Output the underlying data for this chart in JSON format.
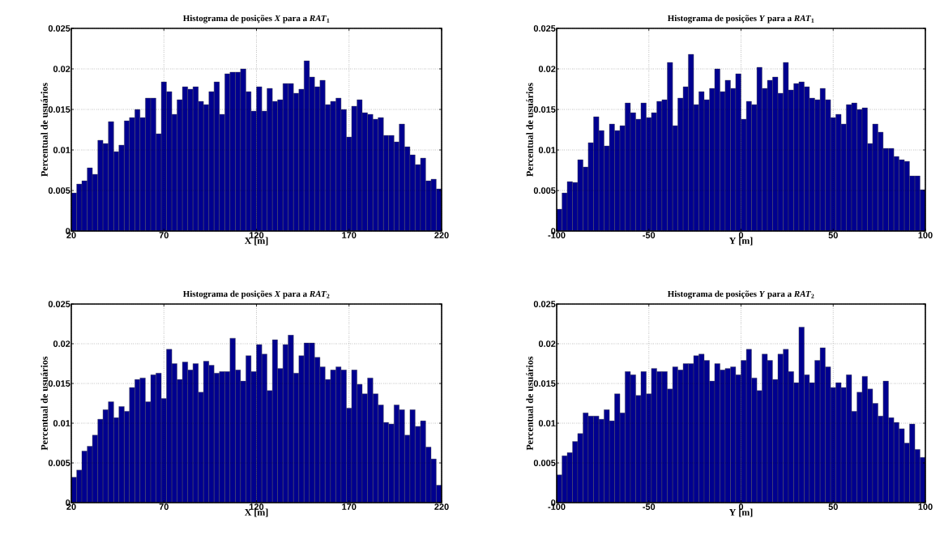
{
  "chart_data": [
    {
      "type": "histogram",
      "title": "Histograma de posições *X* para a *RAT*$_{1}$",
      "xlabel": "X [m]",
      "ylabel": "Percentual de usuários",
      "color": "#00008f",
      "grid": true,
      "xlim": [
        20,
        220
      ],
      "ylim": [
        0,
        0.025
      ],
      "xticks": [
        20,
        70,
        120,
        170,
        220
      ],
      "yticks": [
        0,
        0.005,
        0.01,
        0.015,
        0.02,
        0.025
      ],
      "bins": [
        20,
        22.9,
        25.7,
        28.6,
        31.4,
        34.3,
        37.1,
        40,
        42.9,
        45.7,
        48.6,
        51.4,
        54.3,
        57.1,
        60,
        62.9,
        65.7,
        68.6,
        71.4,
        74.3,
        77.1,
        80,
        82.9,
        85.7,
        88.6,
        91.4,
        94.3,
        97.1,
        100,
        102.9,
        105.7,
        108.6,
        111.4,
        114.3,
        117.1,
        120,
        122.9,
        125.7,
        128.6,
        131.4,
        134.3,
        137.1,
        140,
        142.9,
        145.7,
        148.6,
        151.4,
        154.3,
        157.1,
        160,
        162.9,
        165.7,
        168.6,
        171.4,
        174.3,
        177.1,
        180,
        182.9,
        185.7,
        188.6,
        191.4,
        194.3,
        197.1,
        200,
        202.9,
        205.7,
        208.6,
        211.4,
        214.3,
        217.1,
        220
      ],
      "values": [
        0.0047,
        0.0058,
        0.0062,
        0.0078,
        0.007,
        0.0112,
        0.0108,
        0.0135,
        0.0098,
        0.0106,
        0.0136,
        0.014,
        0.015,
        0.014,
        0.0164,
        0.0164,
        0.012,
        0.0184,
        0.0172,
        0.0144,
        0.0162,
        0.0178,
        0.0175,
        0.0178,
        0.016,
        0.0156,
        0.0172,
        0.0184,
        0.0144,
        0.0194,
        0.0196,
        0.0196,
        0.02,
        0.0172,
        0.0148,
        0.0178,
        0.0148,
        0.0176,
        0.016,
        0.0162,
        0.0182,
        0.0182,
        0.017,
        0.0175,
        0.021,
        0.019,
        0.0178,
        0.0186,
        0.0156,
        0.016,
        0.0164,
        0.015,
        0.0116,
        0.0154,
        0.0162,
        0.0146,
        0.0144,
        0.0138,
        0.014,
        0.0118,
        0.0118,
        0.011,
        0.0132,
        0.0104,
        0.0094,
        0.0082,
        0.009,
        0.0062,
        0.0064,
        0.0052
      ]
    },
    {
      "type": "histogram",
      "title": "Histograma de posições *Y* para a *RAT*$_{1}$",
      "xlabel": "Y [m]",
      "ylabel": "Percentual de usuários",
      "color": "#00008f",
      "grid": true,
      "xlim": [
        -100,
        100
      ],
      "ylim": [
        0,
        0.025
      ],
      "xticks": [
        -100,
        -50,
        0,
        50,
        100
      ],
      "yticks": [
        0,
        0.005,
        0.01,
        0.015,
        0.02,
        0.025
      ],
      "bins": [
        -100,
        -97.1,
        -94.3,
        -91.4,
        -88.6,
        -85.7,
        -82.9,
        -80,
        -77.1,
        -74.3,
        -71.4,
        -68.6,
        -65.7,
        -62.9,
        -60,
        -57.1,
        -54.3,
        -51.4,
        -48.6,
        -45.7,
        -42.9,
        -40,
        -37.1,
        -34.3,
        -31.4,
        -28.6,
        -25.7,
        -22.9,
        -20,
        -17.1,
        -14.3,
        -11.4,
        -8.6,
        -5.7,
        -2.9,
        0,
        2.9,
        5.7,
        8.6,
        11.4,
        14.3,
        17.1,
        20,
        22.9,
        25.7,
        28.6,
        31.4,
        34.3,
        37.1,
        40,
        42.9,
        45.7,
        48.6,
        51.4,
        54.3,
        57.1,
        60,
        62.9,
        65.7,
        68.6,
        71.4,
        74.3,
        77.1,
        80,
        82.9,
        85.7,
        88.6,
        91.4,
        94.3,
        97.1,
        100
      ],
      "values": [
        0.0027,
        0.0047,
        0.0061,
        0.006,
        0.0088,
        0.0079,
        0.0109,
        0.0141,
        0.0124,
        0.0105,
        0.0132,
        0.0124,
        0.013,
        0.0158,
        0.0146,
        0.0138,
        0.0158,
        0.014,
        0.0146,
        0.016,
        0.0162,
        0.0208,
        0.013,
        0.0164,
        0.0178,
        0.0218,
        0.0156,
        0.0172,
        0.0162,
        0.0176,
        0.02,
        0.0172,
        0.0186,
        0.0176,
        0.0194,
        0.0138,
        0.016,
        0.0156,
        0.0202,
        0.0176,
        0.0186,
        0.019,
        0.017,
        0.0208,
        0.0174,
        0.0182,
        0.0184,
        0.0178,
        0.0164,
        0.0162,
        0.0176,
        0.0162,
        0.014,
        0.0144,
        0.0132,
        0.0156,
        0.0158,
        0.015,
        0.0152,
        0.0108,
        0.0132,
        0.0122,
        0.0102,
        0.0102,
        0.0092,
        0.0088,
        0.0086,
        0.0068,
        0.0068,
        0.0051
      ]
    },
    {
      "type": "histogram",
      "title": "Histograma de posições *X* para a *RAT*$_{2}$",
      "xlabel": "X [m]",
      "ylabel": "Percentual de usuários",
      "color": "#00008f",
      "grid": true,
      "xlim": [
        20,
        220
      ],
      "ylim": [
        0,
        0.025
      ],
      "xticks": [
        20,
        70,
        120,
        170,
        220
      ],
      "yticks": [
        0,
        0.005,
        0.01,
        0.015,
        0.02,
        0.025
      ],
      "bins": [
        20,
        22.9,
        25.7,
        28.6,
        31.4,
        34.3,
        37.1,
        40,
        42.9,
        45.7,
        48.6,
        51.4,
        54.3,
        57.1,
        60,
        62.9,
        65.7,
        68.6,
        71.4,
        74.3,
        77.1,
        80,
        82.9,
        85.7,
        88.6,
        91.4,
        94.3,
        97.1,
        100,
        102.9,
        105.7,
        108.6,
        111.4,
        114.3,
        117.1,
        120,
        122.9,
        125.7,
        128.6,
        131.4,
        134.3,
        137.1,
        140,
        142.9,
        145.7,
        148.6,
        151.4,
        154.3,
        157.1,
        160,
        162.9,
        165.7,
        168.6,
        171.4,
        174.3,
        177.1,
        180,
        182.9,
        185.7,
        188.6,
        191.4,
        194.3,
        197.1,
        200,
        202.9,
        205.7,
        208.6,
        211.4,
        214.3,
        217.1,
        220
      ],
      "values": [
        0.0032,
        0.0041,
        0.0065,
        0.0071,
        0.0085,
        0.0105,
        0.0117,
        0.0127,
        0.0107,
        0.0121,
        0.0115,
        0.0145,
        0.0155,
        0.0157,
        0.0127,
        0.0161,
        0.0163,
        0.0131,
        0.0193,
        0.0175,
        0.0155,
        0.0177,
        0.0167,
        0.0175,
        0.0139,
        0.0178,
        0.0173,
        0.0163,
        0.0165,
        0.0165,
        0.0207,
        0.0167,
        0.0153,
        0.0185,
        0.0165,
        0.0199,
        0.0187,
        0.0141,
        0.0205,
        0.0169,
        0.0199,
        0.0211,
        0.0163,
        0.0185,
        0.0201,
        0.0201,
        0.0183,
        0.0171,
        0.0155,
        0.0167,
        0.0171,
        0.0167,
        0.0119,
        0.0167,
        0.0149,
        0.0137,
        0.0157,
        0.0137,
        0.0123,
        0.0101,
        0.0099,
        0.0123,
        0.0117,
        0.0085,
        0.0117,
        0.0096,
        0.0103,
        0.007,
        0.0055,
        0.0022
      ]
    },
    {
      "type": "histogram",
      "title": "Histograma de posições *Y* para a *RAT*$_{2}$",
      "xlabel": "Y [m]",
      "ylabel": "Percentual de usuários",
      "color": "#00008f",
      "grid": true,
      "xlim": [
        -100,
        100
      ],
      "ylim": [
        0,
        0.025
      ],
      "xticks": [
        -100,
        -50,
        0,
        50,
        100
      ],
      "yticks": [
        0,
        0.005,
        0.01,
        0.015,
        0.02,
        0.025
      ],
      "bins": [
        -100,
        -97.1,
        -94.3,
        -91.4,
        -88.6,
        -85.7,
        -82.9,
        -80,
        -77.1,
        -74.3,
        -71.4,
        -68.6,
        -65.7,
        -62.9,
        -60,
        -57.1,
        -54.3,
        -51.4,
        -48.6,
        -45.7,
        -42.9,
        -40,
        -37.1,
        -34.3,
        -31.4,
        -28.6,
        -25.7,
        -22.9,
        -20,
        -17.1,
        -14.3,
        -11.4,
        -8.6,
        -5.7,
        -2.9,
        0,
        2.9,
        5.7,
        8.6,
        11.4,
        14.3,
        17.1,
        20,
        22.9,
        25.7,
        28.6,
        31.4,
        34.3,
        37.1,
        40,
        42.9,
        45.7,
        48.6,
        51.4,
        54.3,
        57.1,
        60,
        62.9,
        65.7,
        68.6,
        71.4,
        74.3,
        77.1,
        80,
        82.9,
        85.7,
        88.6,
        91.4,
        94.3,
        97.1,
        100
      ],
      "values": [
        0.0035,
        0.0059,
        0.0063,
        0.0077,
        0.0087,
        0.0113,
        0.0109,
        0.0109,
        0.0105,
        0.0117,
        0.0103,
        0.0137,
        0.0113,
        0.0165,
        0.0161,
        0.0135,
        0.0165,
        0.0137,
        0.0169,
        0.0165,
        0.0165,
        0.0143,
        0.0171,
        0.0167,
        0.0175,
        0.0175,
        0.0185,
        0.0187,
        0.0179,
        0.0153,
        0.0175,
        0.0167,
        0.0169,
        0.0171,
        0.0161,
        0.0179,
        0.0193,
        0.0157,
        0.0141,
        0.0187,
        0.0179,
        0.0155,
        0.0187,
        0.0193,
        0.0165,
        0.0151,
        0.0221,
        0.0161,
        0.0151,
        0.0179,
        0.0195,
        0.0171,
        0.0145,
        0.0151,
        0.0145,
        0.0161,
        0.0115,
        0.0139,
        0.0159,
        0.0143,
        0.0125,
        0.0109,
        0.0153,
        0.0107,
        0.0101,
        0.0093,
        0.0075,
        0.0099,
        0.0067,
        0.0057
      ]
    }
  ]
}
